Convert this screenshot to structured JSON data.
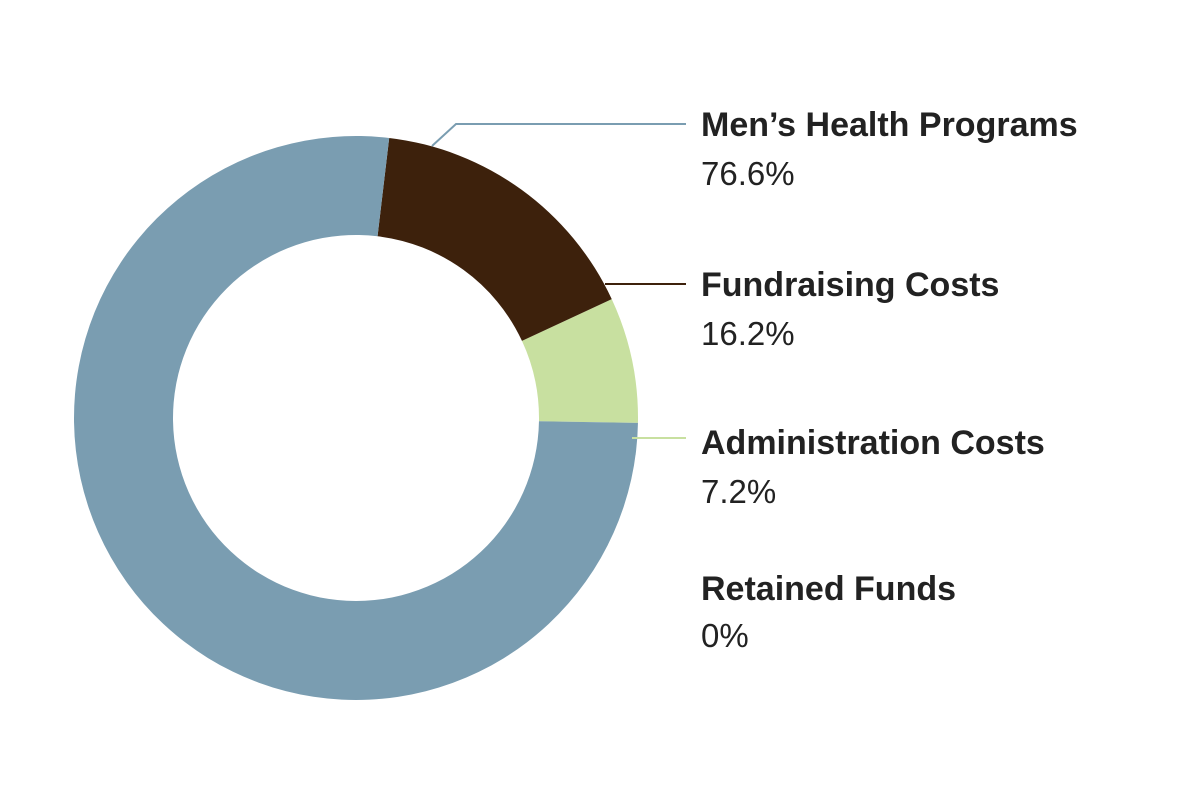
{
  "chart_data": {
    "type": "pie",
    "style": "donut",
    "categories": [
      "Men’s Health Programs",
      "Fundraising Costs",
      "Administration Costs",
      "Retained Funds"
    ],
    "values": [
      76.6,
      16.2,
      7.2,
      0
    ],
    "value_labels": [
      "76.6%",
      "16.2%",
      "7.2%",
      "0%"
    ],
    "colors": [
      "#7a9db1",
      "#3d210c",
      "#c8e0a0",
      "#ffffff"
    ],
    "leader_line_colors": [
      "#7a9db1",
      "#3d210c",
      "#c8e0a0"
    ],
    "legend_placement": "right",
    "title": "",
    "xlabel": "",
    "ylabel": ""
  }
}
